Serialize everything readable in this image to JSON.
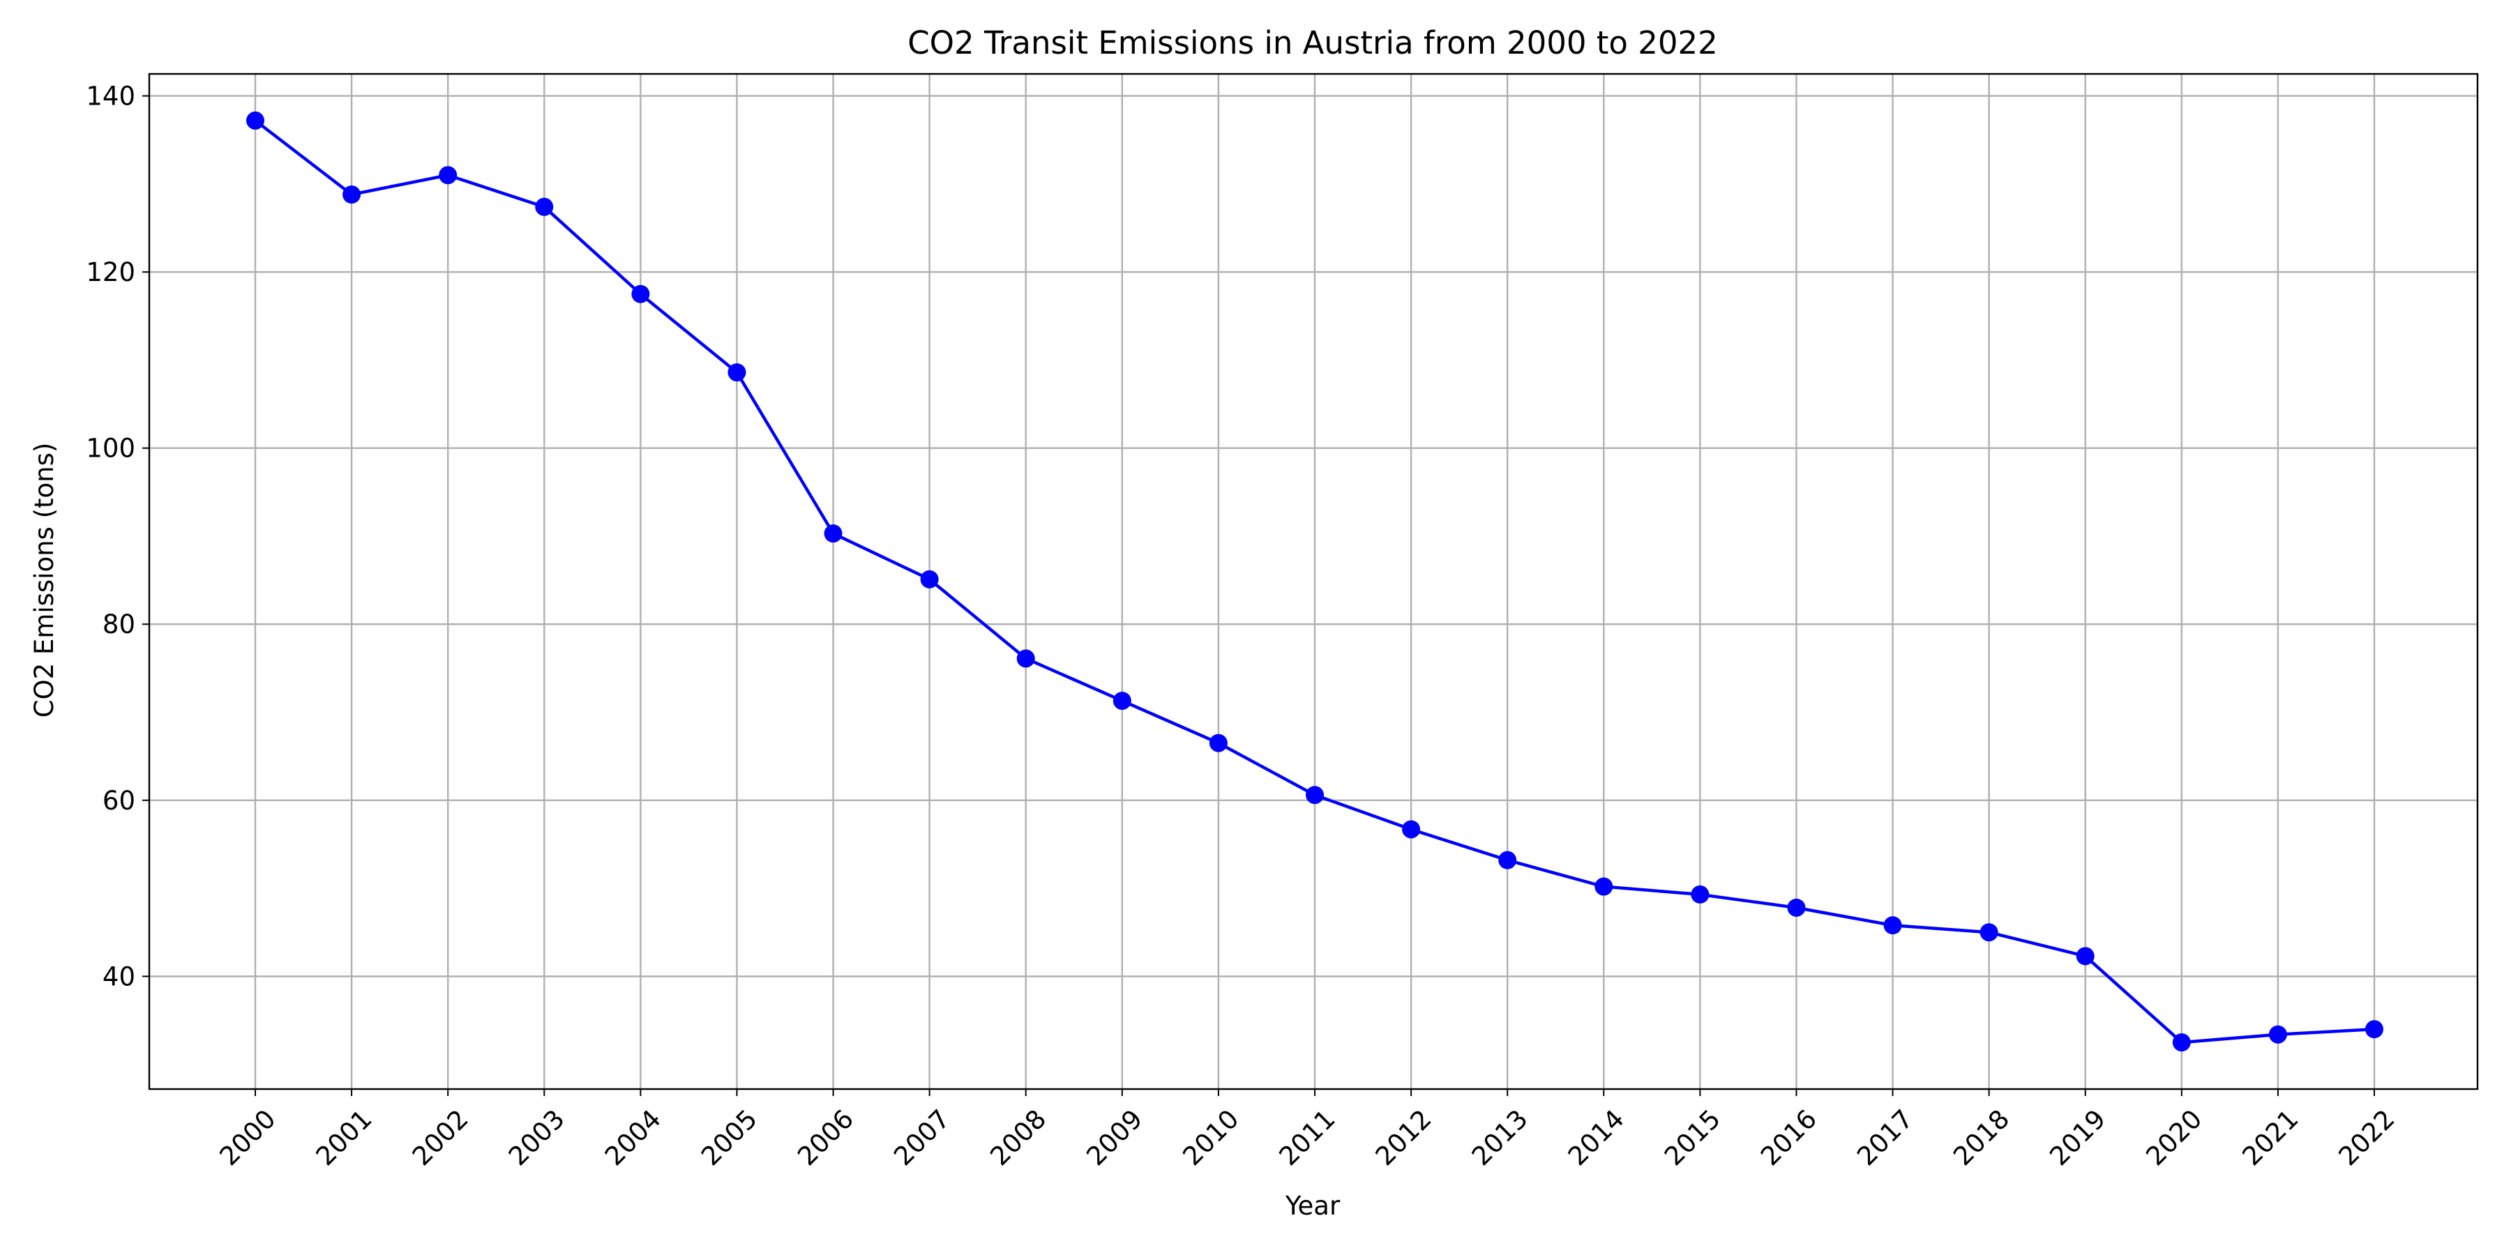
{
  "chart_data": {
    "type": "line",
    "title": "CO2 Transit Emissions in Austria from 2000 to 2022",
    "xlabel": "Year",
    "ylabel": "CO2 Emissions (tons)",
    "x": [
      "2000",
      "2001",
      "2002",
      "2003",
      "2004",
      "2005",
      "2006",
      "2007",
      "2008",
      "2009",
      "2010",
      "2011",
      "2012",
      "2013",
      "2014",
      "2015",
      "2016",
      "2017",
      "2018",
      "2019",
      "2020",
      "2021",
      "2022"
    ],
    "series": [
      {
        "values": [
          137.2,
          128.8,
          131.0,
          127.4,
          117.5,
          108.6,
          90.3,
          85.1,
          76.1,
          71.3,
          66.5,
          60.6,
          56.7,
          53.2,
          50.2,
          49.3,
          47.8,
          45.8,
          45.0,
          42.3,
          32.5,
          33.4,
          34.0
        ],
        "color": "#0000ff",
        "marker": "circle"
      }
    ],
    "ylim": [
      27.2,
      142.5
    ],
    "yticks": [
      40,
      60,
      80,
      100,
      120,
      140
    ],
    "grid": true,
    "x_tick_rotation": 45
  }
}
